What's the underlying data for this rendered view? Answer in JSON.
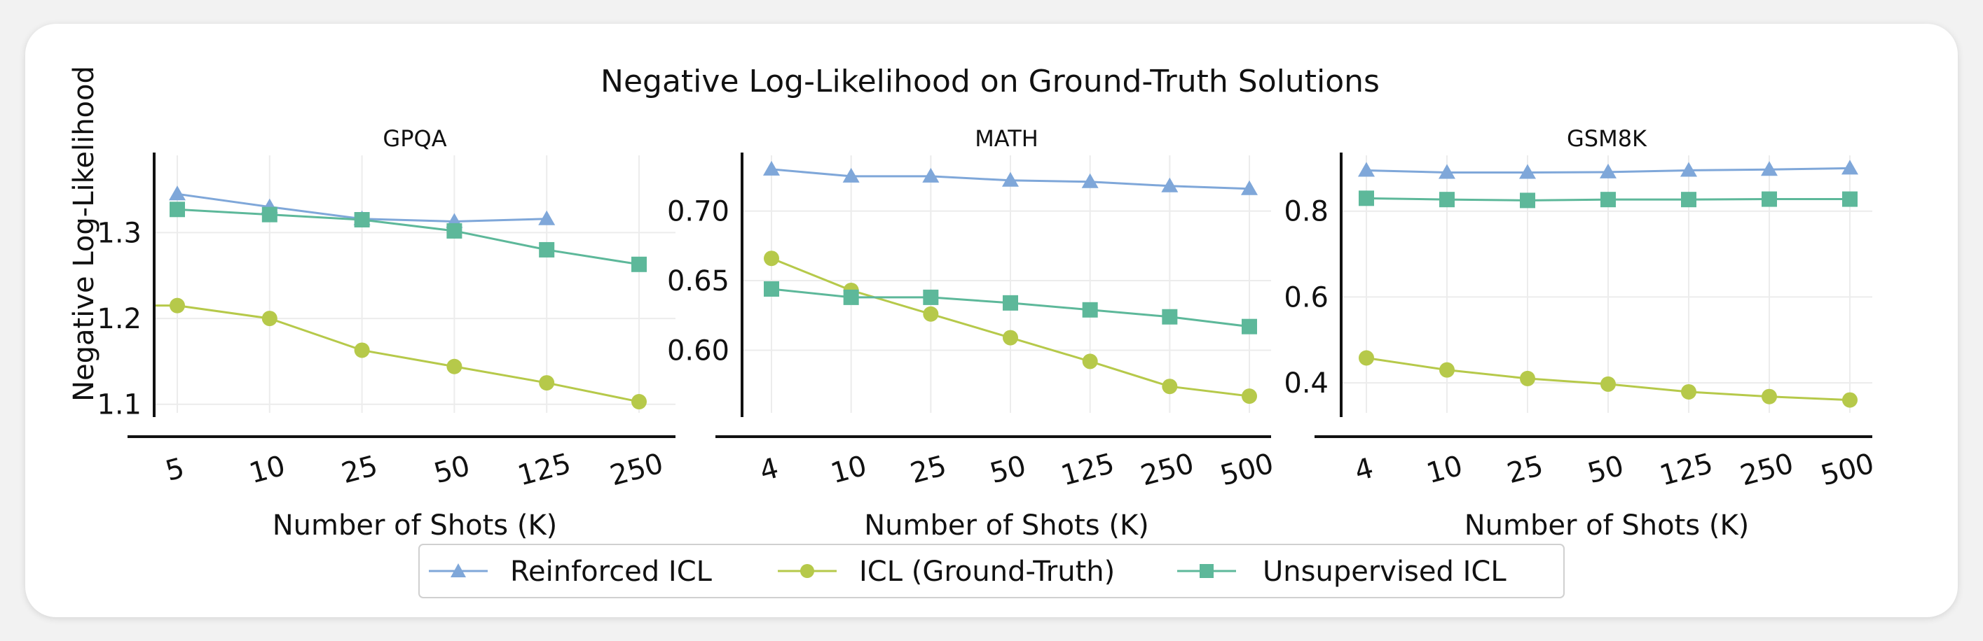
{
  "figure": {
    "title": "Negative Log-Likelihood on Ground-Truth Solutions",
    "ylabel": "Negative Log-Likelihood"
  },
  "legend": {
    "placement": "bottom-center",
    "entries": [
      {
        "name": "Reinforced ICL",
        "color": "#7fa7d9",
        "marker": "triangle"
      },
      {
        "name": "ICL (Ground-Truth)",
        "color": "#b6c94a",
        "marker": "circle"
      },
      {
        "name": "Unsupervised ICL",
        "color": "#5db89a",
        "marker": "square"
      }
    ]
  },
  "chart_data": [
    {
      "type": "line",
      "title": "GPQA",
      "xlabel": "Number of Shots (K)",
      "ylabel": "Negative Log-Likelihood",
      "categories": [
        "5",
        "10",
        "25",
        "50",
        "125",
        "250"
      ],
      "yticks": [
        "1.1",
        "1.2",
        "1.3"
      ],
      "ylim": [
        1.09,
        1.39
      ],
      "grid": true,
      "series": [
        {
          "name": "Reinforced ICL",
          "values": [
            1.345,
            1.33,
            1.316,
            1.313,
            1.316,
            null
          ]
        },
        {
          "name": "ICL (Ground-Truth)",
          "values": [
            1.215,
            1.2,
            1.163,
            1.144,
            1.125,
            1.103
          ]
        },
        {
          "name": "Unsupervised ICL",
          "values": [
            1.327,
            1.321,
            1.315,
            1.302,
            1.28,
            1.263
          ]
        }
      ]
    },
    {
      "type": "line",
      "title": "MATH",
      "xlabel": "Number of Shots (K)",
      "ylabel": "",
      "categories": [
        "4",
        "10",
        "25",
        "50",
        "125",
        "250",
        "500"
      ],
      "yticks": [
        "0.60",
        "0.65",
        "0.70"
      ],
      "ylim": [
        0.555,
        0.74
      ],
      "grid": true,
      "series": [
        {
          "name": "Reinforced ICL",
          "values": [
            0.73,
            0.725,
            0.725,
            0.722,
            0.721,
            0.718,
            0.716
          ]
        },
        {
          "name": "ICL (Ground-Truth)",
          "values": [
            0.666,
            0.643,
            0.626,
            0.609,
            0.592,
            0.574,
            0.567
          ]
        },
        {
          "name": "Unsupervised ICL",
          "values": [
            0.644,
            0.638,
            0.638,
            0.634,
            0.629,
            0.624,
            0.617
          ]
        }
      ]
    },
    {
      "type": "line",
      "title": "GSM8K",
      "xlabel": "Number of Shots (K)",
      "ylabel": "",
      "categories": [
        "4",
        "10",
        "25",
        "50",
        "125",
        "250",
        "500"
      ],
      "yticks": [
        "0.4",
        "0.6",
        "0.8"
      ],
      "ylim": [
        0.33,
        0.93
      ],
      "grid": true,
      "series": [
        {
          "name": "Reinforced ICL",
          "values": [
            0.895,
            0.89,
            0.89,
            0.891,
            0.895,
            0.897,
            0.9
          ]
        },
        {
          "name": "ICL (Ground-Truth)",
          "values": [
            0.458,
            0.43,
            0.41,
            0.397,
            0.379,
            0.368,
            0.36
          ]
        },
        {
          "name": "Unsupervised ICL",
          "values": [
            0.83,
            0.827,
            0.825,
            0.827,
            0.827,
            0.828,
            0.828
          ]
        }
      ]
    }
  ]
}
